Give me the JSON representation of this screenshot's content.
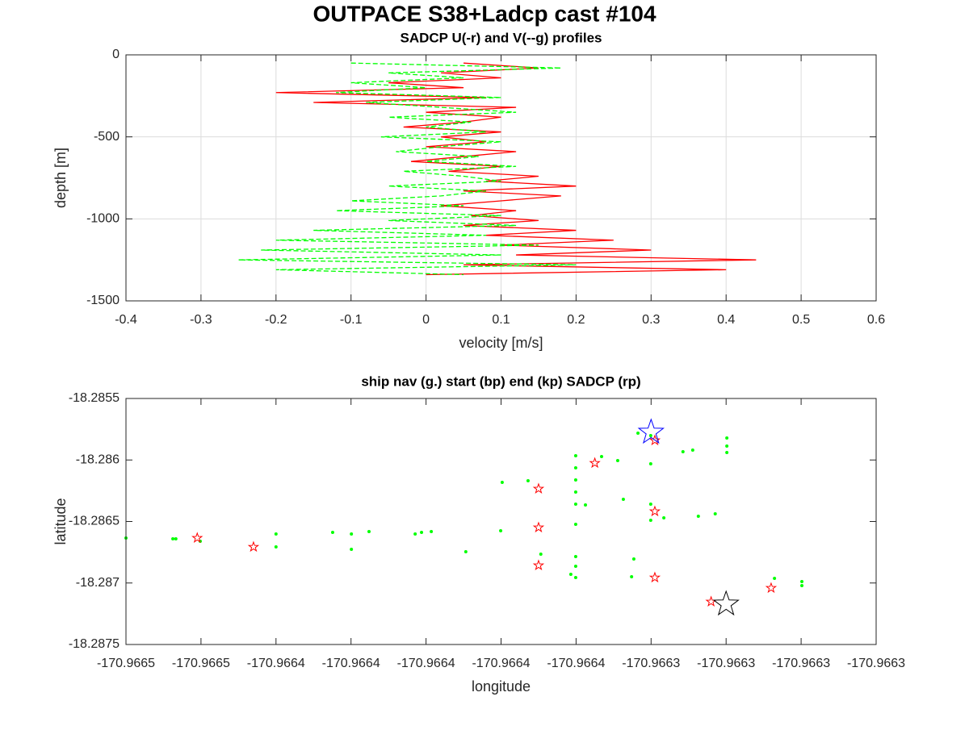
{
  "chart_data": [
    {
      "type": "line",
      "suptitle": "OUTPACE S38+Ladcp cast #104",
      "title": "SADCP U(-r) and V(--g) profiles",
      "xlabel": "velocity [m/s]",
      "ylabel": "depth [m]",
      "xlim": [
        -0.4,
        0.6
      ],
      "xticks": [
        -0.4,
        -0.3,
        -0.2,
        -0.1,
        0,
        0.1,
        0.2,
        0.3,
        0.4,
        0.5,
        0.6
      ],
      "ylim": [
        -1500,
        0
      ],
      "yticks": [
        -1500,
        -1000,
        -500,
        0
      ],
      "grid": true,
      "y": [
        -50,
        -80,
        -110,
        -140,
        -170,
        -200,
        -230,
        -260,
        -290,
        -320,
        -350,
        -380,
        -410,
        -440,
        -470,
        -500,
        -530,
        -560,
        -590,
        -620,
        -650,
        -680,
        -710,
        -740,
        -770,
        -800,
        -830,
        -860,
        -890,
        -920,
        -950,
        -980,
        -1010,
        -1040,
        -1070,
        -1100,
        -1130,
        -1160,
        -1190,
        -1220,
        -1250,
        -1280,
        -1310,
        -1340
      ],
      "series": [
        {
          "color": "#ff0000",
          "linestyle": "solid",
          "values": [
            0.05,
            0.15,
            0.02,
            0.1,
            -0.05,
            0.05,
            -0.2,
            0.08,
            -0.15,
            0.12,
            0.0,
            0.1,
            0.05,
            -0.03,
            0.1,
            0.02,
            0.08,
            0.0,
            0.12,
            0.05,
            -0.02,
            0.1,
            0.03,
            0.15,
            0.08,
            0.2,
            0.05,
            0.18,
            0.1,
            0.02,
            0.12,
            0.06,
            0.15,
            0.05,
            0.2,
            0.08,
            0.25,
            0.1,
            0.3,
            0.12,
            0.44,
            0.05,
            0.4,
            0.0
          ]
        },
        {
          "color": "#00ff00",
          "linestyle": "dashed",
          "values": [
            -0.1,
            0.18,
            -0.05,
            0.05,
            -0.1,
            0.0,
            -0.12,
            0.1,
            -0.08,
            0.02,
            0.12,
            -0.05,
            0.06,
            0.0,
            0.08,
            -0.06,
            0.1,
            0.02,
            -0.04,
            0.07,
            0.0,
            0.12,
            -0.03,
            0.05,
            0.1,
            -0.05,
            0.08,
            0.02,
            -0.1,
            0.05,
            -0.12,
            0.1,
            -0.05,
            0.12,
            -0.15,
            0.08,
            -0.2,
            0.15,
            -0.22,
            0.1,
            -0.25,
            0.2,
            -0.2,
            0.05
          ]
        }
      ]
    },
    {
      "type": "scatter",
      "title": "ship nav (g.) start (bp) end (kp) SADCP (rp)",
      "xlabel": "longitude",
      "ylabel": "latitude",
      "xlim": [
        -170.96647,
        -170.96627
      ],
      "xticks": [
        {
          "value": -170.96647,
          "label": "-170.9665"
        },
        {
          "value": -170.96645,
          "label": "-170.9665"
        },
        {
          "value": -170.96643,
          "label": "-170.9664"
        },
        {
          "value": -170.96641,
          "label": "-170.9664"
        },
        {
          "value": -170.96639,
          "label": "-170.9664"
        },
        {
          "value": -170.96637,
          "label": "-170.9664"
        },
        {
          "value": -170.96635,
          "label": "-170.9664"
        },
        {
          "value": -170.96633,
          "label": "-170.9663"
        },
        {
          "value": -170.96631,
          "label": "-170.9663"
        },
        {
          "value": -170.96629,
          "label": "-170.9663"
        },
        {
          "value": -170.96627,
          "label": "-170.9663"
        }
      ],
      "ylim": [
        -18.2875,
        -18.2855
      ],
      "yticks": [
        -18.2875,
        -18.287,
        -18.2865,
        -18.286,
        -18.2855
      ],
      "grid": false,
      "series": [
        {
          "marker": "dot",
          "color": "#00ff00",
          "x": [
            -170.96647,
            -170.9664575,
            -170.9664567,
            -170.9664502,
            -170.96643,
            -170.96643,
            -170.9664149,
            -170.9664099,
            -170.9664099,
            -170.9664052,
            -170.9663929,
            -170.9663912,
            -170.9663886,
            -170.9663794,
            -170.9663701,
            -170.9663697,
            -170.9663628,
            -170.9663594,
            -170.9663514,
            -170.9663501,
            -170.9663501,
            -170.9663501,
            -170.9663501,
            -170.9663501,
            -170.9663501,
            -170.9663501,
            -170.9663501,
            -170.9663501,
            -170.9663475,
            -170.9663432,
            -170.9663389,
            -170.9663374,
            -170.9663352,
            -170.9663346,
            -170.9663335,
            -170.9663301,
            -170.9663301,
            -170.9663301,
            -170.9663301,
            -170.9663266,
            -170.9663215,
            -170.9663189,
            -170.9663174,
            -170.9663129,
            -170.9663098,
            -170.9663098,
            -170.9663098,
            -170.9662971,
            -170.9662898,
            -170.9662898
          ],
          "y": [
            -18.2866344,
            -18.2866409,
            -18.2866409,
            -18.2866606,
            -18.2866016,
            -18.2867065,
            -18.2865885,
            -18.2866016,
            -18.2867262,
            -18.2865819,
            -18.2866016,
            -18.2865885,
            -18.2865819,
            -18.2867458,
            -18.2865753,
            -18.2861819,
            -18.2861688,
            -18.2867655,
            -18.2869294,
            -18.2859655,
            -18.2860639,
            -18.2861623,
            -18.2862606,
            -18.286359,
            -18.2865229,
            -18.2867852,
            -18.2868639,
            -18.2869557,
            -18.2863655,
            -18.2859721,
            -18.2860049,
            -18.2863196,
            -18.2869491,
            -18.2868048,
            -18.285782,
            -18.2858016,
            -18.2860311,
            -18.286359,
            -18.2864901,
            -18.2864704,
            -18.2859328,
            -18.2859196,
            -18.2864573,
            -18.2864377,
            -18.2858213,
            -18.2858869,
            -18.2859393,
            -18.2869622,
            -18.2869884,
            -18.2870212
          ]
        },
        {
          "marker": "star",
          "color": "#ff0000",
          "size": 6,
          "x": [
            -170.966451,
            -170.966436,
            -170.96636,
            -170.96636,
            -170.96636,
            -170.966345,
            -170.966329,
            -170.966329,
            -170.966314,
            -170.966298,
            -170.966329
          ],
          "y": [
            -18.286634,
            -18.286707,
            -18.286234,
            -18.286549,
            -18.286857,
            -18.286025,
            -18.286418,
            -18.286956,
            -18.287152,
            -18.287041,
            -18.285841
          ]
        },
        {
          "marker": "star",
          "color": "#0000ff",
          "size": 16,
          "x": [
            -170.96633
          ],
          "y": [
            -18.285775
          ]
        },
        {
          "marker": "star",
          "color": "#000000",
          "size": 16,
          "x": [
            -170.96631
          ],
          "y": [
            -18.287172
          ]
        }
      ]
    }
  ]
}
